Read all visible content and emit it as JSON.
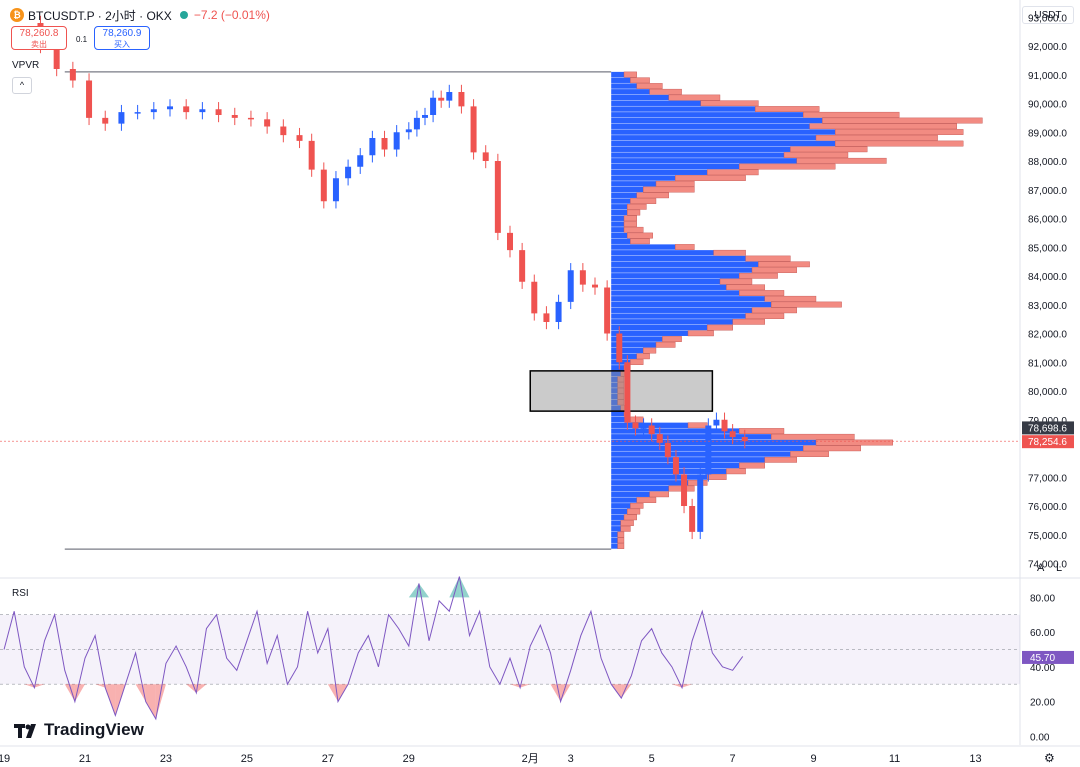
{
  "header": {
    "coin_glyph": "₿",
    "symbol": "BTCUSDT.P · 2小时 · OKX",
    "change": "−7.2 (−0.01%)",
    "sell_price": "78,260.8",
    "sell_label": "卖出",
    "buy_price": "78,260.9",
    "buy_label": "买入",
    "spread": "0.1"
  },
  "indicators": {
    "vpvr_label": "VPVR",
    "collapse_glyph": "^",
    "rsi_label": "RSI"
  },
  "axis": {
    "unit": "USDT",
    "auto_label": "A",
    "log_label": "L"
  },
  "logo": {
    "text": "TradingView"
  },
  "colors": {
    "up": "#2962ff",
    "down": "#ef5350",
    "vp_up": "#2962ff",
    "vp_down": "#f28b82",
    "rsi_line": "#7e57c2"
  },
  "chart_data": [
    {
      "type": "candlestick",
      "title": "",
      "ylim": [
        73600,
        93600
      ],
      "y_ticks": [
        "93,000.0",
        "92,000.0",
        "91,000.0",
        "90,000.0",
        "89,000.0",
        "88,000.0",
        "87,000.0",
        "86,000.0",
        "85,000.0",
        "84,000.0",
        "83,000.0",
        "82,000.0",
        "81,000.0",
        "80,000.0",
        "79,000.0",
        "77,000.0",
        "76,000.0",
        "75,000.0",
        "74,000.0"
      ],
      "y_tick_values": [
        93000,
        92000,
        91000,
        90000,
        89000,
        88000,
        87000,
        86000,
        85000,
        84000,
        83000,
        82000,
        81000,
        80000,
        79000,
        77000,
        76000,
        75000,
        74000
      ],
      "x_ticks": [
        "19",
        "21",
        "23",
        "25",
        "27",
        "29",
        "2月",
        "3",
        "5",
        "7",
        "9",
        "11",
        "13"
      ],
      "x_tick_days": [
        0,
        2,
        4,
        6,
        8,
        10,
        13,
        14,
        16,
        18,
        20,
        22,
        24
      ],
      "closes": [
        92800,
        92000,
        91200,
        90800,
        89500,
        89300,
        89700,
        89700,
        89800,
        89900,
        89700,
        89800,
        89600,
        89500,
        89450,
        89200,
        88900,
        88700,
        87700,
        86600,
        87400,
        87800,
        88200,
        88800,
        88400,
        89000,
        89100,
        89500,
        89600,
        90200,
        90100,
        90400,
        89900,
        88300,
        88000,
        85500,
        84900,
        83800,
        82700,
        82400,
        83100,
        84200,
        83700,
        83600,
        82000,
        81000,
        78900,
        78700,
        78800,
        78500,
        78200,
        77700,
        77100,
        76000,
        75100,
        77100,
        78800,
        79000,
        78600,
        78400,
        78254.6
      ],
      "closes_days": [
        0.5,
        0.9,
        1.3,
        1.7,
        2.1,
        2.5,
        2.9,
        3.3,
        3.7,
        4.1,
        4.5,
        4.9,
        5.3,
        5.7,
        6.1,
        6.5,
        6.9,
        7.3,
        7.6,
        7.9,
        8.2,
        8.5,
        8.8,
        9.1,
        9.4,
        9.7,
        10.0,
        10.2,
        10.4,
        10.6,
        10.8,
        11.0,
        11.3,
        11.6,
        11.9,
        12.2,
        12.5,
        12.8,
        13.1,
        13.4,
        13.7,
        14.0,
        14.3,
        14.6,
        14.9,
        15.2,
        15.4,
        15.6,
        15.8,
        16.0,
        16.2,
        16.4,
        16.6,
        16.8,
        17.0,
        17.2,
        17.4,
        17.6,
        17.8,
        18.0,
        18.3
      ],
      "x_day_range": [
        -0.1,
        25.1
      ],
      "range_high": 91100,
      "range_low": 74500,
      "range_start_day": 1.5,
      "range_end_day": 15.0,
      "gap_box": [
        79300,
        80700
      ],
      "gap_box_days": [
        13.0,
        17.5
      ],
      "last_price": "78,254.6",
      "last_price_value": 78254.6,
      "high_price": "78,698.6",
      "high_price_value": 78698.6,
      "volume_profile": {
        "start_day": 15.0,
        "levels": [
          91000,
          90800,
          90600,
          90400,
          90200,
          90000,
          89800,
          89600,
          89400,
          89200,
          89000,
          88800,
          88600,
          88400,
          88200,
          88000,
          87800,
          87600,
          87400,
          87200,
          87000,
          86800,
          86600,
          86400,
          86200,
          86000,
          85800,
          85600,
          85400,
          85200,
          85000,
          84800,
          84600,
          84400,
          84200,
          84000,
          83800,
          83600,
          83400,
          83200,
          83000,
          82800,
          82600,
          82400,
          82200,
          82000,
          81800,
          81600,
          81400,
          81200,
          81000,
          80800,
          80600,
          80400,
          80200,
          80000,
          79800,
          79600,
          79400,
          79200,
          79000,
          78800,
          78600,
          78400,
          78200,
          78000,
          77800,
          77600,
          77400,
          77200,
          77000,
          76800,
          76600,
          76400,
          76200,
          76000,
          75800,
          75600,
          75400,
          75200,
          75000,
          74800,
          74600
        ],
        "up": [
          4,
          6,
          8,
          12,
          18,
          28,
          45,
          60,
          66,
          62,
          70,
          64,
          70,
          56,
          54,
          58,
          40,
          30,
          20,
          14,
          10,
          8,
          6,
          5,
          5,
          4,
          4,
          4,
          5,
          6,
          20,
          32,
          42,
          46,
          44,
          40,
          34,
          36,
          40,
          48,
          50,
          44,
          42,
          38,
          30,
          24,
          16,
          14,
          10,
          8,
          6,
          4,
          3,
          2,
          2,
          2,
          2,
          2,
          3,
          4,
          6,
          24,
          40,
          50,
          64,
          60,
          56,
          48,
          40,
          36,
          30,
          24,
          18,
          12,
          8,
          6,
          5,
          4,
          3,
          3,
          2,
          2,
          2
        ],
        "down": [
          4,
          6,
          8,
          10,
          16,
          18,
          20,
          30,
          50,
          46,
          40,
          38,
          40,
          24,
          20,
          28,
          30,
          16,
          22,
          12,
          16,
          10,
          8,
          6,
          4,
          4,
          4,
          6,
          8,
          6,
          6,
          10,
          14,
          16,
          14,
          12,
          10,
          12,
          14,
          16,
          22,
          14,
          12,
          10,
          8,
          8,
          6,
          6,
          4,
          4,
          4,
          2,
          2,
          2,
          2,
          2,
          2,
          2,
          2,
          2,
          4,
          6,
          14,
          26,
          24,
          18,
          12,
          10,
          8,
          6,
          6,
          6,
          8,
          6,
          6,
          4,
          4,
          4,
          4,
          3,
          2,
          2,
          2
        ]
      }
    },
    {
      "type": "line",
      "title": "",
      "ylim": [
        -5,
        90
      ],
      "y_ticks": [
        "80.00",
        "60.00",
        "40.00",
        "20.00",
        "0.00"
      ],
      "y_tick_values": [
        80,
        60,
        40,
        20,
        0
      ],
      "band": [
        30,
        70
      ],
      "mid": 50,
      "last_value": "45.70",
      "last_value_num": 45.7,
      "x_day_range": [
        -0.1,
        25.1
      ],
      "x_days": [
        0.0,
        0.25,
        0.5,
        0.75,
        1.0,
        1.25,
        1.5,
        1.75,
        2.0,
        2.25,
        2.5,
        2.75,
        3.0,
        3.25,
        3.5,
        3.75,
        4.0,
        4.25,
        4.5,
        4.75,
        5.0,
        5.25,
        5.5,
        5.75,
        6.0,
        6.25,
        6.5,
        6.75,
        7.0,
        7.25,
        7.5,
        7.75,
        8.0,
        8.25,
        8.5,
        8.75,
        9.0,
        9.25,
        9.5,
        9.75,
        10.0,
        10.25,
        10.5,
        10.75,
        11.0,
        11.25,
        11.5,
        11.75,
        12.0,
        12.25,
        12.5,
        12.75,
        13.0,
        13.25,
        13.5,
        13.75,
        14.0,
        14.25,
        14.5,
        14.75,
        15.0,
        15.25,
        15.5,
        15.75,
        16.0,
        16.25,
        16.5,
        16.75,
        17.0,
        17.25,
        17.5,
        17.75,
        18.0,
        18.25
      ],
      "values": [
        50,
        72,
        40,
        28,
        55,
        70,
        38,
        20,
        45,
        58,
        28,
        12,
        30,
        48,
        20,
        10,
        42,
        52,
        40,
        25,
        62,
        70,
        45,
        38,
        55,
        72,
        42,
        58,
        30,
        40,
        72,
        48,
        62,
        20,
        30,
        48,
        58,
        40,
        70,
        62,
        52,
        88,
        55,
        78,
        72,
        92,
        58,
        72,
        40,
        30,
        45,
        28,
        52,
        64,
        48,
        20,
        38,
        58,
        72,
        45,
        30,
        22,
        35,
        55,
        62,
        48,
        40,
        28,
        55,
        72,
        48,
        40,
        38,
        46
      ]
    }
  ]
}
